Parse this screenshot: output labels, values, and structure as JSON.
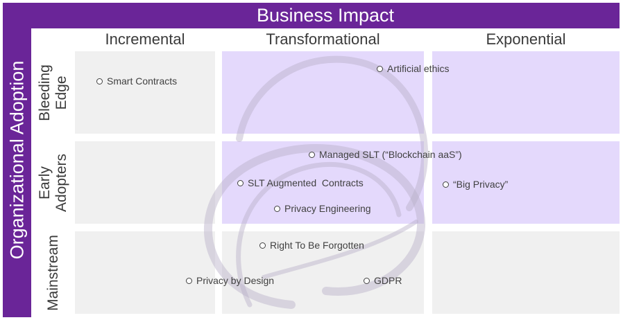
{
  "header": {
    "title": "Business Impact"
  },
  "side": {
    "title": "Organizational Adoption"
  },
  "columns": [
    "Incremental",
    "Transformational",
    "Exponential"
  ],
  "rows": [
    "Bleeding\nEdge",
    "Early\nAdopters",
    "Mainstream"
  ],
  "colors": {
    "band": "#6a2598",
    "grey_cell": "#f0f0f0",
    "purple_cell": "#e4d9fc"
  },
  "items": {
    "smart_contracts": "Smart Contracts",
    "artificial_ethics": "Artificial ethics",
    "managed_slt": "Managed SLT (“Blockchain aaS”)",
    "slt_augmented": "SLT Augmented  Contracts",
    "privacy_engineering": "Privacy Engineering",
    "big_privacy": "“Big Privacy”",
    "right_to_be_forgotten": "Right To Be Forgotten",
    "privacy_by_design": "Privacy by Design",
    "gdpr": "GDPR"
  }
}
